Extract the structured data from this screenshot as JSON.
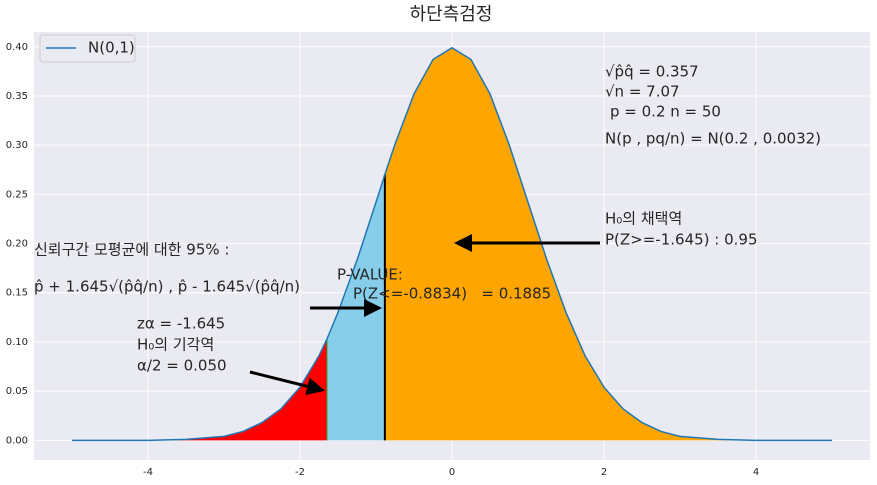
{
  "chart_data": {
    "type": "area",
    "title": "하단측검정",
    "series": [
      {
        "name": "N(0,1)",
        "color": "#1f77b4",
        "x": [
          -5,
          -4.5,
          -4,
          -3.5,
          -3,
          -2.75,
          -2.5,
          -2.25,
          -2,
          -1.75,
          -1.645,
          -1.5,
          -1.25,
          -1,
          -0.8834,
          -0.75,
          -0.5,
          -0.25,
          0,
          0.25,
          0.5,
          0.75,
          1,
          1.25,
          1.5,
          1.75,
          2,
          2.25,
          2.5,
          2.75,
          3,
          3.5,
          4,
          4.5,
          5
        ],
        "values": [
          0,
          0,
          0,
          0.001,
          0.004,
          0.009,
          0.018,
          0.032,
          0.054,
          0.086,
          0.103,
          0.13,
          0.183,
          0.242,
          0.27,
          0.301,
          0.352,
          0.387,
          0.399,
          0.387,
          0.352,
          0.301,
          0.242,
          0.183,
          0.13,
          0.086,
          0.054,
          0.032,
          0.018,
          0.009,
          0.004,
          0.001,
          0,
          0,
          0
        ]
      }
    ],
    "regions": [
      {
        "from": -5,
        "to": -1.645,
        "color": "#ff0000"
      },
      {
        "from": -1.645,
        "to": -0.8834,
        "color": "#87ceeb"
      },
      {
        "from": -0.8834,
        "to": 5,
        "color": "#ffa500"
      }
    ],
    "annotations": [
      "√p̂q̂ = 0.357",
      "√n = 7.07",
      "p = 0.2 n = 50",
      "N(p , pq/n) = N(0.2 , 0.0032)",
      "H₀의 채택역",
      "P(Z>=-1.645) : 0.95",
      "신뢰구간 모평균에 대한 95% :",
      "p̂ + 1.645√(p̂q̂/n) , p̂ - 1.645√(p̂q̂/n)",
      "P-VALUE:",
      "P(Z<=-0.8834)   = 0.1885",
      "zα = -1.645",
      "H₀의 기각역",
      "α/2 = 0.050"
    ],
    "xlim": [
      -5.5,
      5.5
    ],
    "xticks": [
      -4,
      -2,
      0,
      2,
      4
    ],
    "ylim": [
      -0.02,
      0.415
    ],
    "yticks": [
      {
        "value": 0,
        "label": "0.00"
      },
      {
        "value": 0.05,
        "label": "0.05"
      },
      {
        "value": 0.1,
        "label": "0.10"
      },
      {
        "value": 0.15,
        "label": "0.15"
      },
      {
        "value": 0.2,
        "label": "0.20"
      },
      {
        "value": 0.25,
        "label": "0.25"
      },
      {
        "value": 0.3,
        "label": "0.30"
      },
      {
        "value": 0.35,
        "label": "0.35"
      },
      {
        "value": 0.4,
        "label": "0.40"
      }
    ],
    "grid": true,
    "legend": "upper left"
  }
}
